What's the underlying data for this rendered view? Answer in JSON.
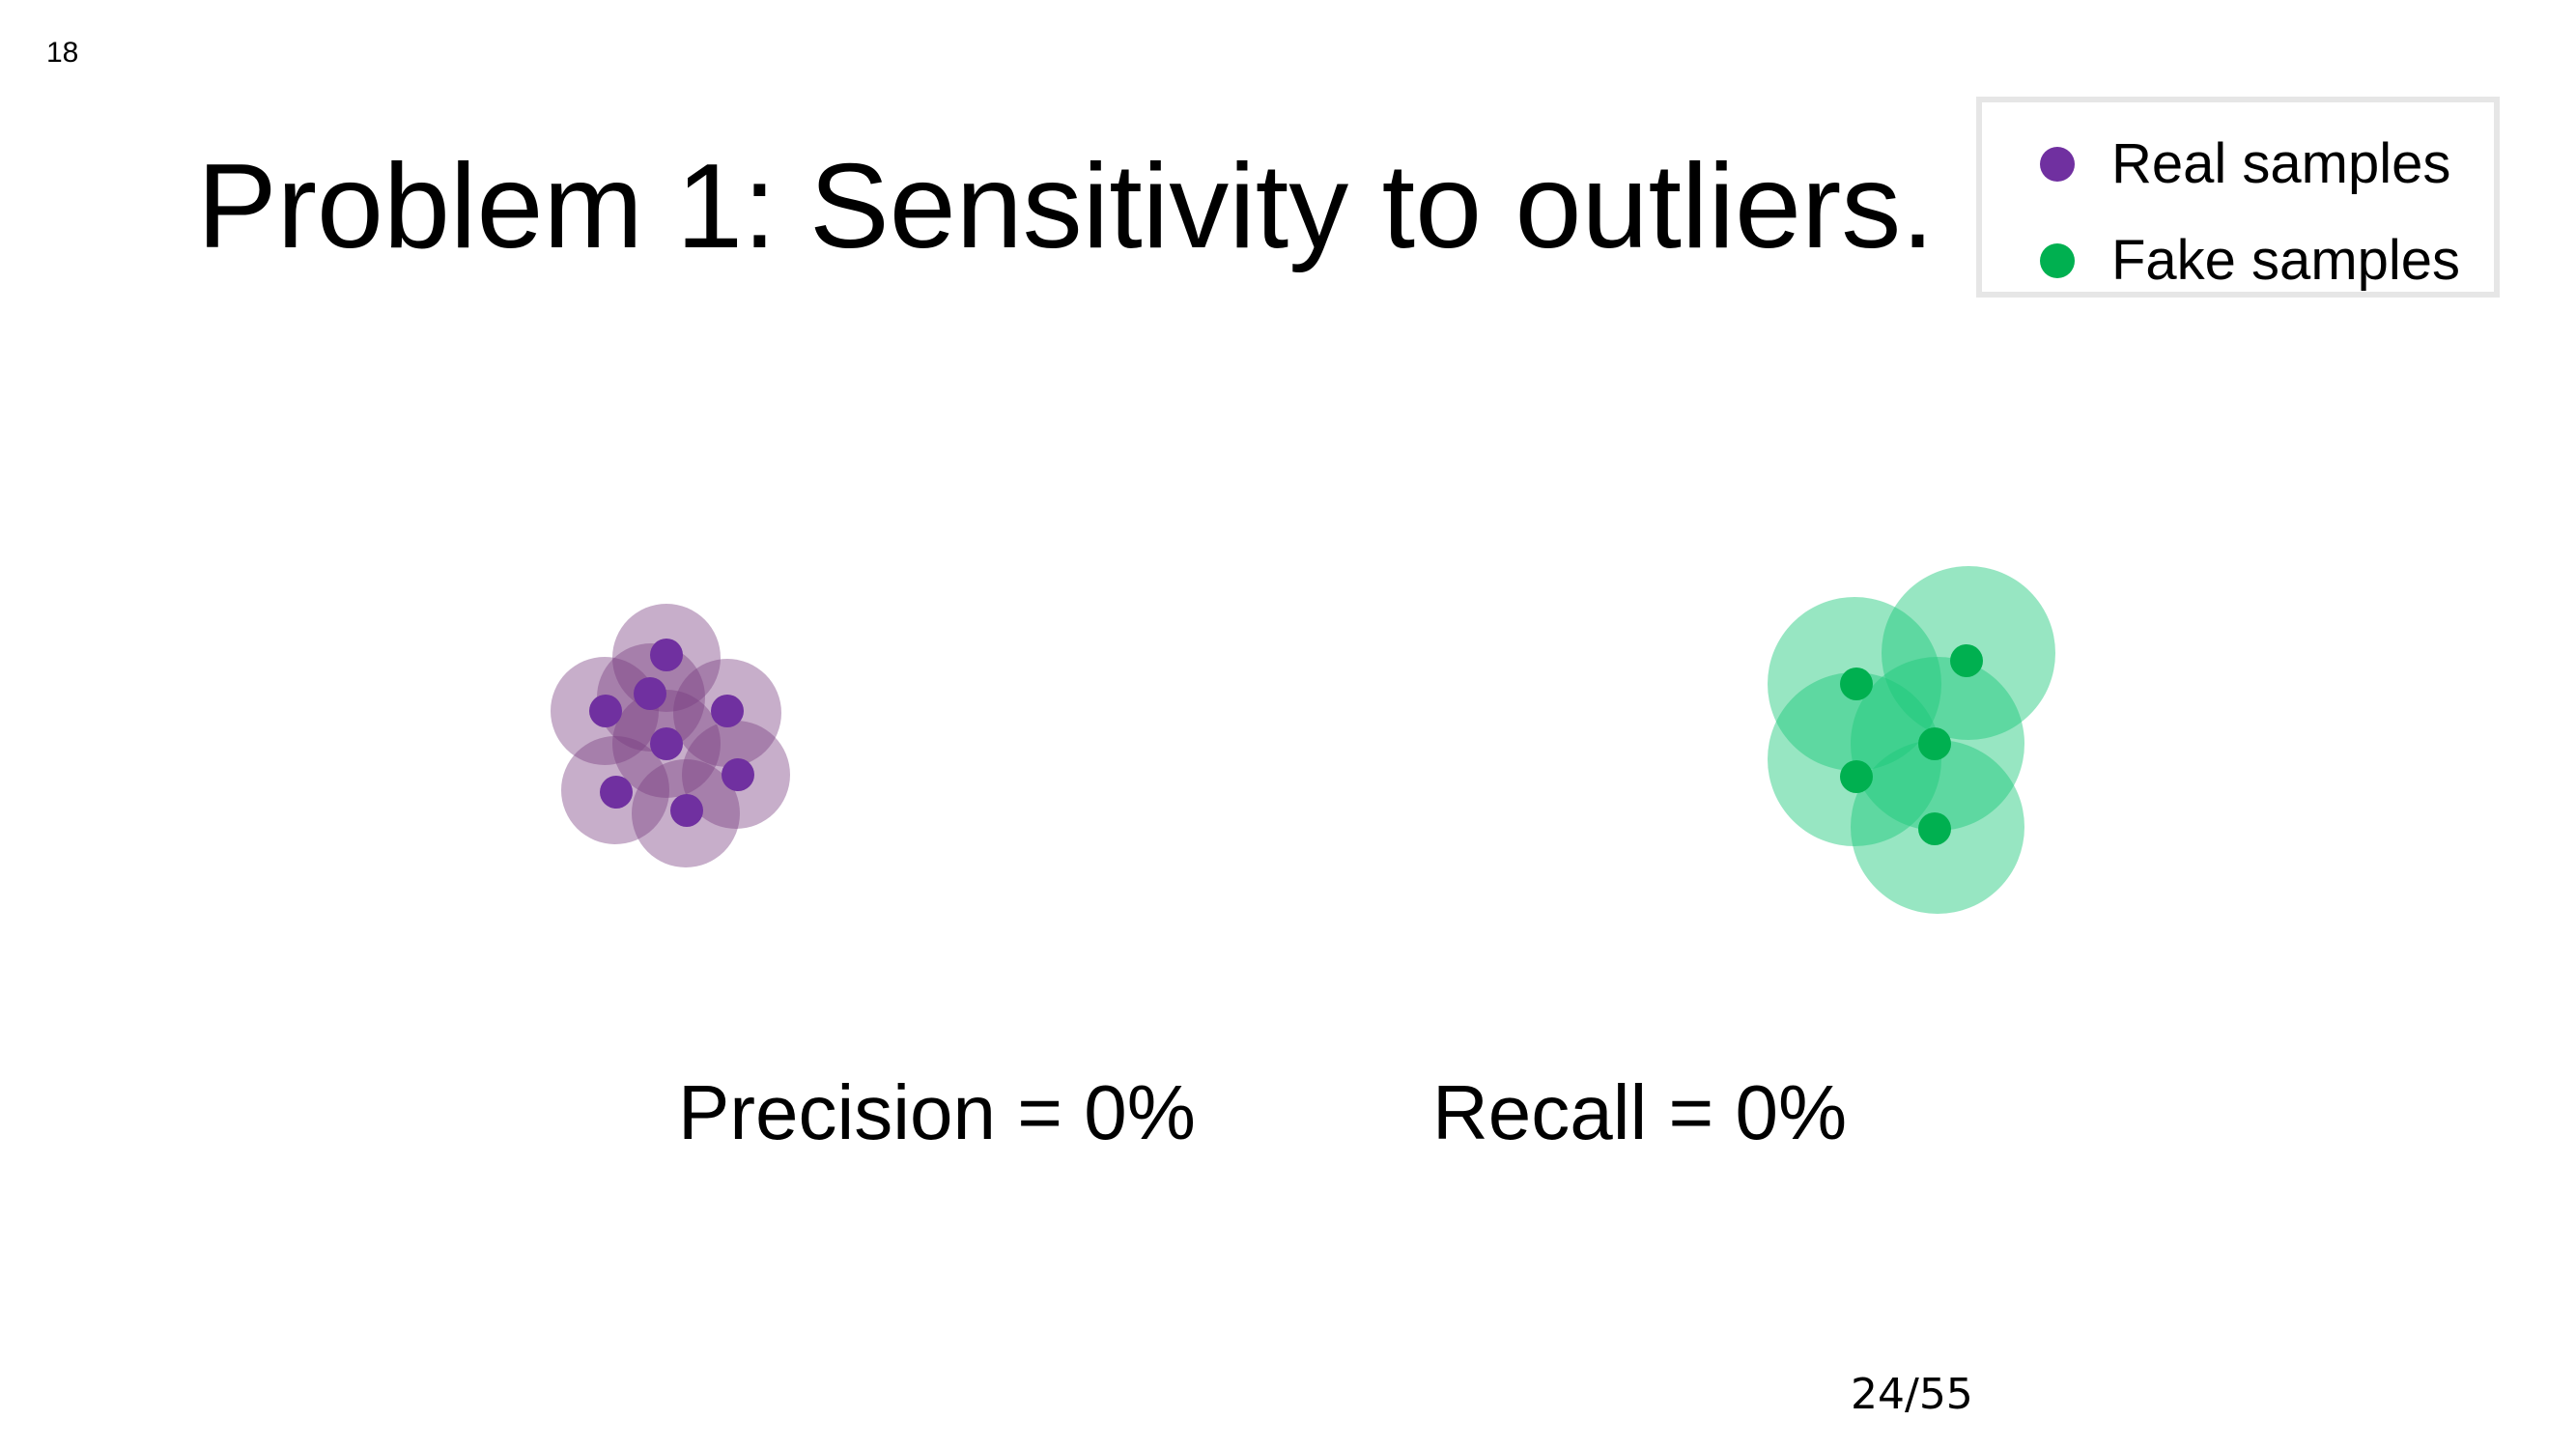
{
  "slide": {
    "number": "18",
    "title": "Problem 1: Sensitivity to outliers.",
    "page_counter": "24/55"
  },
  "legend": {
    "items": [
      {
        "label": "Real samples",
        "color": "#7030a0"
      },
      {
        "label": "Fake samples",
        "color": "#00b050"
      }
    ]
  },
  "metrics": {
    "precision": "Precision = 0%",
    "recall": "Recall = 0%"
  },
  "colors": {
    "real_point": "#7030a0",
    "real_region": "#7a3f80",
    "fake_point": "#00b050",
    "fake_region": "#1dc87a"
  }
}
